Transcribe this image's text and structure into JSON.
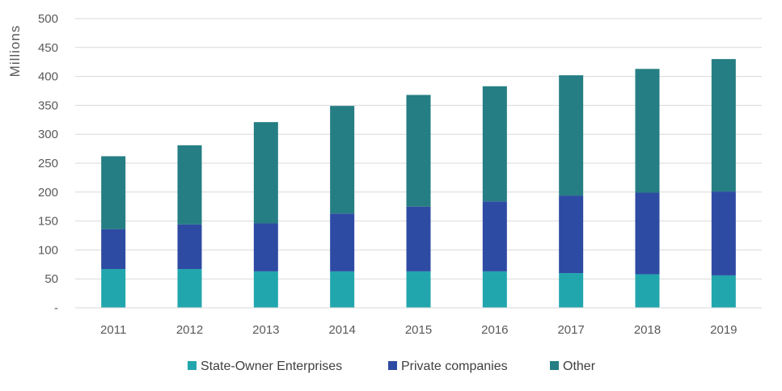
{
  "chart_data": {
    "type": "bar",
    "stacked": true,
    "ylabel": "Millions",
    "ylim": [
      0,
      500
    ],
    "yticks": [
      0,
      50,
      100,
      150,
      200,
      250,
      300,
      350,
      400,
      450,
      500
    ],
    "ytick_labels": [
      "-",
      "50",
      "100",
      "150",
      "200",
      "250",
      "300",
      "350",
      "400",
      "450",
      "500"
    ],
    "grid": true,
    "legend": "bottom",
    "categories": [
      "2011",
      "2012",
      "2013",
      "2014",
      "2015",
      "2016",
      "2017",
      "2018",
      "2019"
    ],
    "series": [
      {
        "name": "State-Owner Enterprises",
        "color": "#22A6AE",
        "values": [
          67,
          67,
          63,
          63,
          63,
          63,
          60,
          58,
          56
        ]
      },
      {
        "name": "Private companies",
        "color": "#2E4BA3",
        "values": [
          69,
          77,
          83,
          100,
          112,
          121,
          134,
          141,
          145
        ]
      },
      {
        "name": "Other",
        "color": "#257E83",
        "values": [
          126,
          137,
          175,
          186,
          193,
          199,
          208,
          214,
          229
        ]
      }
    ]
  }
}
